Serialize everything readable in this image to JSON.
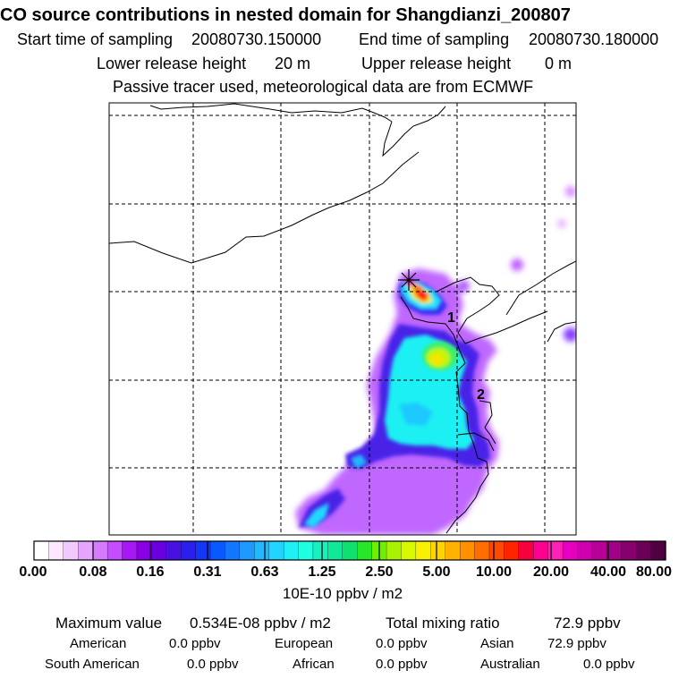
{
  "header": {
    "title": "CO  source contributions in nested domain for Shangdianzi_200807",
    "start_label": "Start time of sampling",
    "start_value": "20080730.150000",
    "end_label": "End time of sampling",
    "end_value": "20080730.180000",
    "lower_label": "Lower release height",
    "lower_value": "20 m",
    "upper_label": "Upper release height",
    "upper_value": "0 m",
    "note": "Passive tracer used, meteorological data are from ECMWF"
  },
  "map": {
    "markers": [
      {
        "label": "1"
      },
      {
        "label": "2"
      }
    ],
    "receptor_symbol": "star-marker"
  },
  "colorbar": {
    "tick_labels": [
      "0.00",
      "0.08",
      "0.16",
      "0.31",
      "0.63",
      "1.25",
      "2.50",
      "5.00",
      "10.00",
      "20.00",
      "40.00",
      "80.00"
    ],
    "unit": "10E-10 ppbv / m2",
    "colors": [
      "#ffffff",
      "#fbe8ff",
      "#f2caff",
      "#e6a6ff",
      "#d67bff",
      "#c64cff",
      "#a818f5",
      "#8a00e6",
      "#6a00e0",
      "#4a10e0",
      "#2b1ff0",
      "#1238f5",
      "#0a58ff",
      "#1478ff",
      "#1f98ff",
      "#22b8ff",
      "#22d4ff",
      "#1ef0f5",
      "#20ffe0",
      "#18f0c0",
      "#10e89a",
      "#10e070",
      "#28e628",
      "#6ef000",
      "#a8f400",
      "#d8f800",
      "#f8f000",
      "#ffd400",
      "#ffb200",
      "#ff9000",
      "#ff6c00",
      "#ff4800",
      "#ff2400",
      "#f5003a",
      "#ff0090",
      "#ff20b8",
      "#e800c0",
      "#d000b0",
      "#b80098",
      "#a00088",
      "#880070",
      "#6a0058",
      "#500040"
    ]
  },
  "stats": {
    "max_label": "Maximum value",
    "max_value": "0.534E-08 ppbv / m2",
    "total_label": "Total mixing ratio",
    "total_value": "72.9 ppbv",
    "american_label": "American",
    "american_value": "0.0 ppbv",
    "european_label": "European",
    "european_value": "0.0 ppbv",
    "asian_label": "Asian",
    "asian_value": "72.9 ppbv",
    "south_american_label": "South American",
    "south_american_value": "0.0 ppbv",
    "african_label": "African",
    "african_value": "0.0 ppbv",
    "australian_label": "Australian",
    "australian_value": "0.0 ppbv"
  }
}
